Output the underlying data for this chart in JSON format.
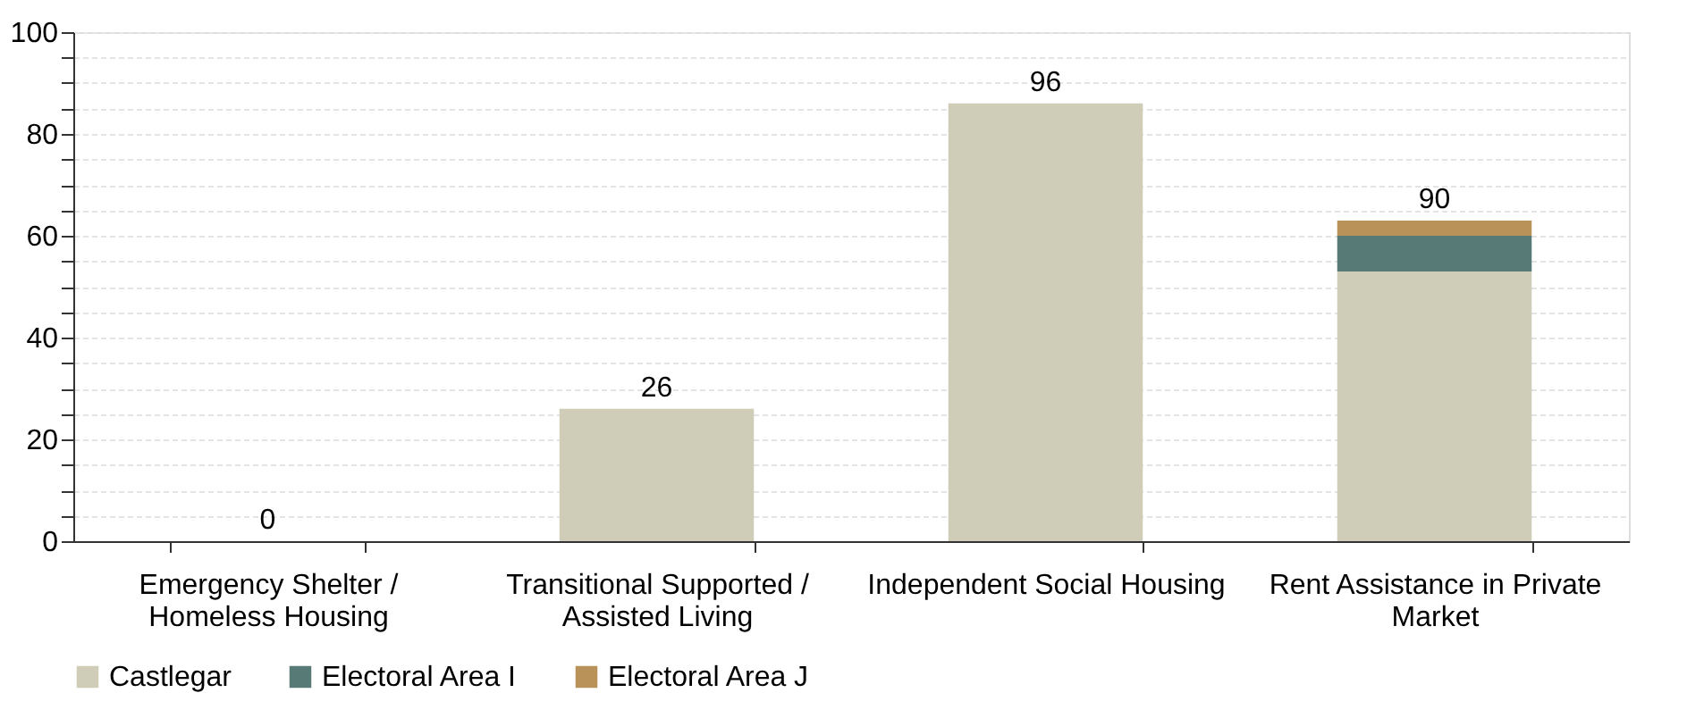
{
  "chart_data": {
    "type": "bar",
    "stacked": true,
    "categories": [
      "Emergency Shelter / Homeless Housing",
      "Transitional Supported / Assisted Living",
      "Independent Social Housing",
      "Rent Assistance in Private Market"
    ],
    "series": [
      {
        "name": "Castlegar",
        "color": "#cfcdb8",
        "values": [
          0,
          26,
          86,
          53
        ]
      },
      {
        "name": "Electoral Area I",
        "color": "#577a76",
        "values": [
          0,
          0,
          0,
          7
        ]
      },
      {
        "name": "Electoral Area J",
        "color": "#b89259",
        "values": [
          0,
          0,
          0,
          3
        ]
      }
    ],
    "annotations": [
      {
        "text": "0",
        "x": "Emergency Shelter / Homeless Housing",
        "y": 0
      },
      {
        "text": "26",
        "x": "Transitional Supported / Assisted Living",
        "y": 26
      },
      {
        "text": "96",
        "x": "Independent Social Housing",
        "y": 86
      },
      {
        "text": "90",
        "x": "Rent Assistance in Private Market",
        "y": 63
      }
    ],
    "ylim": [
      0,
      100
    ],
    "yticks": [
      0,
      {
        "value": 5,
        "label": null
      },
      {
        "value": 10,
        "label": null
      },
      {
        "value": 15,
        "label": null
      },
      20,
      {
        "value": 25,
        "label": null
      },
      {
        "value": 30,
        "label": null
      },
      {
        "value": 35,
        "label": null
      },
      40,
      {
        "value": 45,
        "label": null
      },
      {
        "value": 50,
        "label": null
      },
      {
        "value": 55,
        "label": null
      },
      60,
      {
        "value": 65,
        "label": null
      },
      {
        "value": 70,
        "label": null
      },
      {
        "value": 75,
        "label": null
      },
      80,
      {
        "value": 85,
        "label": null
      },
      {
        "value": 90,
        "label": null
      },
      {
        "value": 95,
        "label": null
      },
      100
    ],
    "grid": "y",
    "legend": "bottom"
  }
}
